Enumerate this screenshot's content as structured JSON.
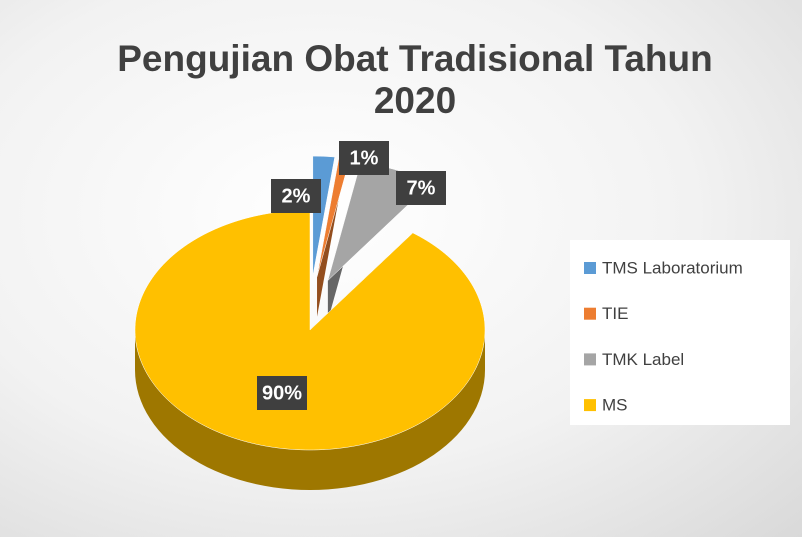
{
  "chart_data": {
    "type": "pie",
    "title": "Pengujian Obat Tradisional Tahun 2020",
    "categories": [
      "TMS Laboratorium",
      "TIE",
      "TMK Label",
      "MS"
    ],
    "values": [
      2,
      1,
      7,
      90
    ],
    "value_labels": [
      "2%",
      "1%",
      "7%",
      "90%"
    ],
    "colors": [
      "#5b9bd5",
      "#ed7d31",
      "#a5a5a5",
      "#ffc000"
    ],
    "legend": "right"
  }
}
